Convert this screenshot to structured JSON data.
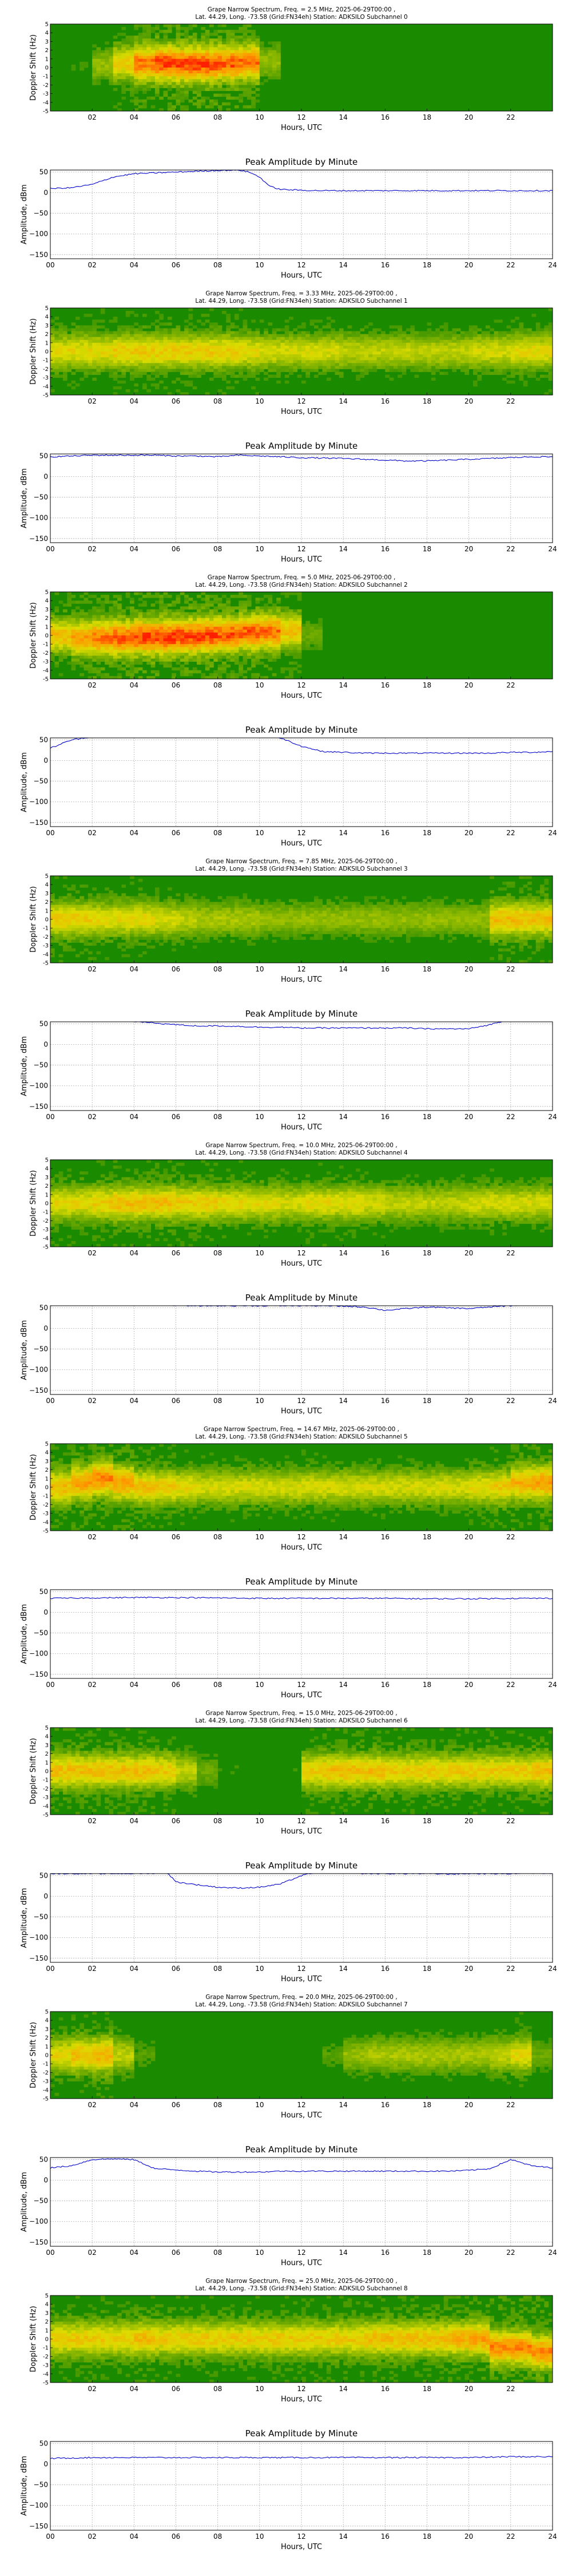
{
  "figure": {
    "spectrogram_xlabel": "Hours, UTC",
    "spectrogram_ylabel": "Doppler Shift (Hz)",
    "spectrogram_yticks": [
      "-5",
      "-4",
      "-3",
      "-2",
      "-1",
      "0",
      "1",
      "2",
      "3",
      "4",
      "5"
    ],
    "spectrogram_xticks": [
      "02",
      "04",
      "06",
      "08",
      "10",
      "12",
      "14",
      "16",
      "18",
      "20",
      "22"
    ],
    "amplitude_title": "Peak Amplitude by Minute",
    "amplitude_xlabel": "Hours, UTC",
    "amplitude_ylabel": "Amplitude, dBm",
    "amplitude_xticks": [
      "00",
      "02",
      "04",
      "06",
      "08",
      "10",
      "12",
      "14",
      "16",
      "18",
      "20",
      "22",
      "24"
    ],
    "amplitude_yticks": [
      "50",
      "0",
      "−50",
      "−100",
      "−150"
    ],
    "line_color": "#0000cc",
    "spectrogram_background": "#1a8a00",
    "spectrogram_peak_color": "#ff2000"
  },
  "chart_data": [
    {
      "type": "heatmap",
      "title_line1": "Grape Narrow Spectrum, Freq. = 2.5 MHz, 2025-06-29T00:00 ,",
      "title_line2": "Lat.  44.29, Long. -73.58 (Grid:FN34eh) Station: ADKSILO Subchannel 0",
      "xlabel": "Hours, UTC",
      "ylabel": "Doppler Shift (Hz)",
      "xlim": [
        0,
        24
      ],
      "ylim": [
        -5,
        5
      ],
      "grid": false,
      "intensity": [
        0.05,
        0.1,
        0.3,
        0.55,
        0.8,
        0.9,
        0.9,
        0.9,
        0.85,
        0.8,
        0.3,
        0.05,
        0.02,
        0.02,
        0.02,
        0.02,
        0.02,
        0.02,
        0.02,
        0.02,
        0.02,
        0.02,
        0.02,
        0.02
      ],
      "doppler": [
        0,
        0,
        0.3,
        0.5,
        0.5,
        0.5,
        0.4,
        0.4,
        0.5,
        0.6,
        0.7,
        0.5,
        0,
        0,
        0,
        0,
        0,
        0,
        0,
        0,
        0,
        0,
        0,
        0
      ]
    },
    {
      "type": "line",
      "title": "Peak Amplitude by Minute",
      "xlabel": "Hours, UTC",
      "ylabel": "Amplitude, dBm",
      "xlim": [
        0,
        24
      ],
      "ylim": [
        -160,
        55
      ],
      "grid": true,
      "x": [
        0,
        1,
        2,
        3,
        4,
        5,
        6,
        7,
        8,
        9,
        9.5,
        10,
        10.5,
        11,
        12,
        13,
        14,
        15,
        16,
        17,
        18,
        19,
        20,
        21,
        22,
        23,
        24
      ],
      "y": [
        10,
        12,
        20,
        38,
        46,
        48,
        50,
        52,
        54,
        55,
        50,
        38,
        15,
        8,
        6,
        5,
        5,
        5,
        5,
        5,
        5,
        5,
        5,
        5,
        5,
        5,
        5
      ],
      "series": [
        {
          "name": "",
          "color": "#0000cc"
        }
      ]
    },
    {
      "type": "heatmap",
      "title_line1": "Grape Narrow Spectrum, Freq. = 3.33 MHz, 2025-06-29T00:00 ,",
      "title_line2": "Lat.  44.29, Long. -73.58 (Grid:FN34eh) Station: ADKSILO Subchannel 1",
      "xlabel": "Hours, UTC",
      "ylabel": "Doppler Shift (Hz)",
      "xlim": [
        0,
        24
      ],
      "ylim": [
        -5,
        5
      ],
      "grid": false,
      "intensity": [
        0.5,
        0.5,
        0.5,
        0.55,
        0.55,
        0.55,
        0.55,
        0.55,
        0.55,
        0.5,
        0.45,
        0.45,
        0.45,
        0.45,
        0.4,
        0.4,
        0.4,
        0.4,
        0.4,
        0.4,
        0.45,
        0.45,
        0.5,
        0.5
      ],
      "doppler": [
        0,
        0,
        0,
        0,
        0,
        0,
        0,
        0,
        0,
        0,
        0,
        0,
        0,
        0,
        0,
        0,
        0,
        0,
        0,
        0,
        0,
        0,
        0,
        0
      ]
    },
    {
      "type": "line",
      "title": "Peak Amplitude by Minute",
      "xlabel": "Hours, UTC",
      "ylabel": "Amplitude, dBm",
      "xlim": [
        0,
        24
      ],
      "ylim": [
        -160,
        55
      ],
      "grid": true,
      "x": [
        0,
        1,
        2,
        3,
        4,
        5,
        6,
        7,
        8,
        9,
        10,
        11,
        12,
        13,
        14,
        15,
        16,
        17,
        18,
        19,
        20,
        21,
        22,
        23,
        24
      ],
      "y": [
        48,
        50,
        52,
        52,
        52,
        52,
        50,
        50,
        48,
        52,
        50,
        48,
        46,
        45,
        44,
        42,
        40,
        38,
        38,
        40,
        42,
        44,
        46,
        48,
        48
      ],
      "series": [
        {
          "name": "",
          "color": "#0000cc"
        }
      ]
    },
    {
      "type": "heatmap",
      "title_line1": "Grape Narrow Spectrum, Freq. = 5.0 MHz, 2025-06-29T00:00 ,",
      "title_line2": "Lat.  44.29, Long. -73.58 (Grid:FN34eh) Station: ADKSILO Subchannel 2",
      "xlabel": "Hours, UTC",
      "ylabel": "Doppler Shift (Hz)",
      "xlim": [
        0,
        24
      ],
      "ylim": [
        -5,
        5
      ],
      "grid": false,
      "intensity": [
        0.6,
        0.7,
        0.8,
        0.85,
        0.9,
        0.9,
        0.9,
        0.9,
        0.85,
        0.85,
        0.8,
        0.6,
        0.2,
        0.05,
        0.05,
        0.05,
        0.05,
        0.05,
        0.05,
        0.05,
        0.05,
        0.05,
        0.05,
        0.05
      ],
      "doppler": [
        0,
        -0.3,
        -0.3,
        -0.3,
        -0.2,
        -0.2,
        -0.1,
        0,
        0.1,
        0.3,
        0.4,
        0.5,
        0,
        0,
        0,
        0,
        0,
        0,
        0,
        0,
        0,
        0,
        0,
        0
      ]
    },
    {
      "type": "line",
      "title": "Peak Amplitude by Minute",
      "xlabel": "Hours, UTC",
      "ylabel": "Amplitude, dBm",
      "xlim": [
        0,
        24
      ],
      "ylim": [
        -160,
        55
      ],
      "grid": true,
      "x": [
        0,
        1,
        2,
        3,
        4,
        5,
        6,
        7,
        8,
        9,
        10,
        11,
        12,
        13,
        14,
        15,
        16,
        17,
        18,
        19,
        20,
        21,
        22,
        23,
        24
      ],
      "y": [
        30,
        50,
        58,
        62,
        64,
        65,
        65,
        65,
        64,
        64,
        62,
        55,
        35,
        22,
        20,
        18,
        18,
        18,
        18,
        18,
        18,
        18,
        20,
        20,
        22
      ],
      "series": [
        {
          "name": "",
          "color": "#0000cc"
        }
      ]
    },
    {
      "type": "heatmap",
      "title_line1": "Grape Narrow Spectrum, Freq. = 7.85 MHz, 2025-06-29T00:00 ,",
      "title_line2": "Lat.  44.29, Long. -73.58 (Grid:FN34eh) Station: ADKSILO Subchannel 3",
      "xlabel": "Hours, UTC",
      "ylabel": "Doppler Shift (Hz)",
      "xlim": [
        0,
        24
      ],
      "ylim": [
        -5,
        5
      ],
      "grid": false,
      "intensity": [
        0.55,
        0.55,
        0.5,
        0.5,
        0.5,
        0.45,
        0.4,
        0.35,
        0.35,
        0.35,
        0.3,
        0.3,
        0.3,
        0.3,
        0.3,
        0.3,
        0.3,
        0.3,
        0.3,
        0.3,
        0.3,
        0.6,
        0.6,
        0.6
      ],
      "doppler": [
        0,
        0,
        0,
        0,
        0,
        0,
        0,
        0,
        0,
        0,
        0,
        0,
        0,
        0,
        0,
        0,
        0,
        0,
        0,
        0,
        0,
        0,
        0,
        0
      ]
    },
    {
      "type": "line",
      "title": "Peak Amplitude by Minute",
      "xlabel": "Hours, UTC",
      "ylabel": "Amplitude, dBm",
      "xlim": [
        0,
        24
      ],
      "ylim": [
        -160,
        55
      ],
      "grid": true,
      "x": [
        0,
        1,
        2,
        3,
        4,
        5,
        6,
        7,
        8,
        9,
        10,
        11,
        12,
        13,
        14,
        15,
        16,
        17,
        18,
        19,
        20,
        21,
        22,
        23,
        24
      ],
      "y": [
        60,
        60,
        58,
        58,
        56,
        52,
        48,
        45,
        45,
        44,
        42,
        42,
        40,
        40,
        40,
        40,
        40,
        40,
        38,
        38,
        38,
        48,
        62,
        64,
        64
      ],
      "series": [
        {
          "name": "",
          "color": "#0000cc"
        }
      ]
    },
    {
      "type": "heatmap",
      "title_line1": "Grape Narrow Spectrum, Freq. = 10.0 MHz, 2025-06-29T00:00 ,",
      "title_line2": "Lat.  44.29, Long. -73.58 (Grid:FN34eh) Station: ADKSILO Subchannel 4",
      "xlabel": "Hours, UTC",
      "ylabel": "Doppler Shift (Hz)",
      "xlim": [
        0,
        24
      ],
      "ylim": [
        -5,
        5
      ],
      "grid": false,
      "intensity": [
        0.5,
        0.5,
        0.55,
        0.6,
        0.6,
        0.6,
        0.55,
        0.55,
        0.5,
        0.5,
        0.5,
        0.45,
        0.5,
        0.5,
        0.5,
        0.45,
        0.4,
        0.4,
        0.4,
        0.4,
        0.45,
        0.45,
        0.45,
        0.45
      ],
      "doppler": [
        0,
        0,
        0,
        0,
        0,
        0,
        0,
        0,
        0,
        0,
        0,
        0,
        0,
        0,
        0,
        0,
        0,
        0,
        0,
        0,
        0,
        0,
        0,
        0
      ]
    },
    {
      "type": "line",
      "title": "Peak Amplitude by Minute",
      "xlabel": "Hours, UTC",
      "ylabel": "Amplitude, dBm",
      "xlim": [
        0,
        24
      ],
      "ylim": [
        -160,
        55
      ],
      "grid": true,
      "x": [
        0,
        1,
        2,
        3,
        4,
        5,
        6,
        7,
        8,
        9,
        10,
        11,
        12,
        13,
        14,
        15,
        16,
        17,
        18,
        19,
        20,
        21,
        22,
        23,
        24
      ],
      "y": [
        55,
        58,
        58,
        60,
        60,
        58,
        56,
        55,
        55,
        55,
        55,
        55,
        55,
        55,
        54,
        52,
        44,
        48,
        52,
        50,
        48,
        52,
        55,
        58,
        58
      ],
      "series": [
        {
          "name": "",
          "color": "#0000cc"
        }
      ]
    },
    {
      "type": "heatmap",
      "title_line1": "Grape Narrow Spectrum, Freq. = 14.67 MHz, 2025-06-29T00:00 ,",
      "title_line2": "Lat.  44.29, Long. -73.58 (Grid:FN34eh) Station: ADKSILO Subchannel 5",
      "xlabel": "Hours, UTC",
      "ylabel": "Doppler Shift (Hz)",
      "xlim": [
        0,
        24
      ],
      "ylim": [
        -5,
        5
      ],
      "grid": false,
      "intensity": [
        0.6,
        0.7,
        0.75,
        0.7,
        0.6,
        0.55,
        0.5,
        0.45,
        0.45,
        0.45,
        0.45,
        0.45,
        0.45,
        0.45,
        0.45,
        0.45,
        0.45,
        0.45,
        0.45,
        0.45,
        0.5,
        0.55,
        0.65,
        0.7
      ],
      "doppler": [
        0,
        0.5,
        1,
        0.5,
        0,
        0,
        0,
        0,
        0,
        0,
        0,
        0,
        0,
        0,
        0,
        0,
        0,
        0,
        0,
        0,
        0,
        0,
        0.5,
        0.5
      ]
    },
    {
      "type": "line",
      "title": "Peak Amplitude by Minute",
      "xlabel": "Hours, UTC",
      "ylabel": "Amplitude, dBm",
      "xlim": [
        0,
        24
      ],
      "ylim": [
        -160,
        55
      ],
      "grid": true,
      "x": [
        0,
        2,
        4,
        6,
        8,
        10,
        12,
        14,
        16,
        18,
        20,
        22,
        24
      ],
      "y": [
        34,
        35,
        36,
        36,
        35,
        34,
        34,
        34,
        34,
        33,
        33,
        34,
        34
      ],
      "series": [
        {
          "name": "",
          "color": "#0000cc"
        }
      ]
    },
    {
      "type": "heatmap",
      "title_line1": "Grape Narrow Spectrum, Freq. = 15.0 MHz, 2025-06-29T00:00 ,",
      "title_line2": "Lat.  44.29, Long. -73.58 (Grid:FN34eh) Station: ADKSILO Subchannel 6",
      "xlabel": "Hours, UTC",
      "ylabel": "Doppler Shift (Hz)",
      "xlim": [
        0,
        24
      ],
      "ylim": [
        -5,
        5
      ],
      "grid": false,
      "intensity": [
        0.6,
        0.6,
        0.6,
        0.6,
        0.6,
        0.55,
        0.4,
        0.2,
        0.1,
        0.05,
        0.05,
        0.1,
        0.55,
        0.6,
        0.6,
        0.6,
        0.55,
        0.55,
        0.55,
        0.55,
        0.55,
        0.55,
        0.55,
        0.6
      ],
      "doppler": [
        0,
        0,
        0,
        0,
        0,
        0,
        0,
        0,
        0,
        0,
        0,
        0,
        0,
        0,
        0,
        0,
        0,
        0,
        0,
        0,
        0,
        0,
        0,
        0
      ]
    },
    {
      "type": "line",
      "title": "Peak Amplitude by Minute",
      "xlabel": "Hours, UTC",
      "ylabel": "Amplitude, dBm",
      "xlim": [
        0,
        24
      ],
      "ylim": [
        -160,
        55
      ],
      "grid": true,
      "x": [
        0,
        1,
        2,
        3,
        4,
        5,
        5.5,
        6,
        7,
        8,
        9,
        10,
        11,
        12,
        13,
        14,
        15,
        16,
        17,
        18,
        19,
        20,
        21,
        22,
        23,
        24
      ],
      "y": [
        55,
        55,
        55,
        55,
        55,
        56,
        62,
        35,
        28,
        22,
        20,
        22,
        30,
        50,
        62,
        58,
        55,
        55,
        55,
        55,
        54,
        55,
        55,
        55,
        56,
        56
      ],
      "series": [
        {
          "name": "",
          "color": "#0000cc"
        }
      ]
    },
    {
      "type": "heatmap",
      "title_line1": "Grape Narrow Spectrum, Freq. = 20.0 MHz, 2025-06-29T00:00 ,",
      "title_line2": "Lat.  44.29, Long. -73.58 (Grid:FN34eh) Station: ADKSILO Subchannel 7",
      "xlabel": "Hours, UTC",
      "ylabel": "Doppler Shift (Hz)",
      "xlim": [
        0,
        24
      ],
      "ylim": [
        -5,
        5
      ],
      "grid": false,
      "intensity": [
        0.5,
        0.6,
        0.65,
        0.4,
        0.15,
        0.05,
        0.05,
        0.05,
        0.05,
        0.05,
        0.05,
        0.05,
        0.05,
        0.15,
        0.3,
        0.35,
        0.35,
        0.35,
        0.35,
        0.35,
        0.35,
        0.4,
        0.5,
        0.2
      ],
      "doppler": [
        0,
        0,
        0,
        0,
        0,
        0,
        0,
        0,
        0,
        0,
        0,
        0,
        0,
        0,
        0,
        0,
        0,
        0,
        0,
        0,
        0,
        0,
        0,
        0
      ]
    },
    {
      "type": "line",
      "title": "Peak Amplitude by Minute",
      "xlabel": "Hours, UTC",
      "ylabel": "Amplitude, dBm",
      "xlim": [
        0,
        24
      ],
      "ylim": [
        -160,
        55
      ],
      "grid": true,
      "x": [
        0,
        1,
        2,
        3,
        4,
        5,
        6,
        7,
        8,
        9,
        10,
        11,
        12,
        13,
        14,
        15,
        16,
        17,
        18,
        19,
        20,
        21,
        22,
        23,
        24
      ],
      "y": [
        30,
        35,
        50,
        52,
        50,
        28,
        25,
        22,
        20,
        20,
        20,
        22,
        22,
        22,
        22,
        22,
        22,
        22,
        22,
        22,
        24,
        28,
        50,
        35,
        30
      ],
      "series": [
        {
          "name": "",
          "color": "#0000cc"
        }
      ]
    },
    {
      "type": "heatmap",
      "title_line1": "Grape Narrow Spectrum, Freq. = 25.0 MHz, 2025-06-29T00:00 ,",
      "title_line2": "Lat.  44.29, Long. -73.58 (Grid:FN34eh) Station: ADKSILO Subchannel 8",
      "xlabel": "Hours, UTC",
      "ylabel": "Doppler Shift (Hz)",
      "xlim": [
        0,
        24
      ],
      "ylim": [
        -5,
        5
      ],
      "grid": false,
      "intensity": [
        0.55,
        0.55,
        0.55,
        0.55,
        0.6,
        0.55,
        0.55,
        0.55,
        0.55,
        0.55,
        0.55,
        0.55,
        0.55,
        0.55,
        0.55,
        0.6,
        0.6,
        0.6,
        0.6,
        0.65,
        0.7,
        0.75,
        0.75,
        0.75
      ],
      "doppler": [
        0,
        0,
        0,
        0,
        0,
        0,
        0,
        0,
        0,
        0,
        0,
        0,
        0,
        0,
        0,
        0,
        0,
        0,
        0,
        0,
        0,
        -1,
        -1,
        -1.5
      ]
    },
    {
      "type": "line",
      "title": "Peak Amplitude by Minute",
      "xlabel": "Hours, UTC",
      "ylabel": "Amplitude, dBm",
      "xlim": [
        0,
        24
      ],
      "ylim": [
        -160,
        55
      ],
      "grid": true,
      "x": [
        0,
        2,
        4,
        6,
        8,
        10,
        12,
        14,
        16,
        18,
        20,
        22,
        24
      ],
      "y": [
        14,
        16,
        16,
        16,
        16,
        16,
        16,
        16,
        16,
        16,
        16,
        18,
        18
      ],
      "series": [
        {
          "name": "",
          "color": "#0000cc"
        }
      ]
    }
  ]
}
